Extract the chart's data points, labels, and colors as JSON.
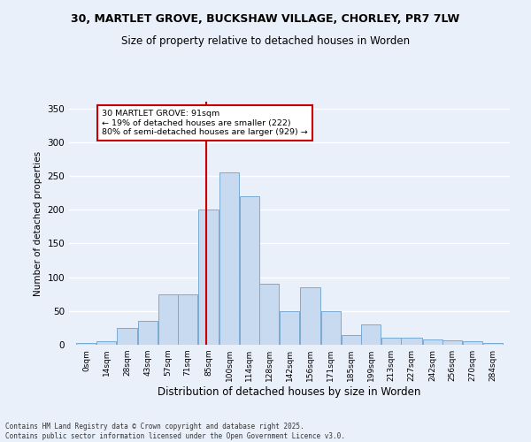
{
  "title_line1": "30, MARTLET GROVE, BUCKSHAW VILLAGE, CHORLEY, PR7 7LW",
  "title_line2": "Size of property relative to detached houses in Worden",
  "xlabel": "Distribution of detached houses by size in Worden",
  "ylabel": "Number of detached properties",
  "bar_labels": [
    "0sqm",
    "14sqm",
    "28sqm",
    "43sqm",
    "57sqm",
    "71sqm",
    "85sqm",
    "100sqm",
    "114sqm",
    "128sqm",
    "142sqm",
    "156sqm",
    "171sqm",
    "185sqm",
    "199sqm",
    "213sqm",
    "227sqm",
    "242sqm",
    "256sqm",
    "270sqm",
    "284sqm"
  ],
  "bar_values": [
    2,
    5,
    25,
    35,
    75,
    75,
    200,
    255,
    220,
    90,
    50,
    85,
    50,
    15,
    30,
    10,
    10,
    8,
    7,
    5,
    2
  ],
  "bar_edges": [
    0,
    14,
    28,
    43,
    57,
    71,
    85,
    100,
    114,
    128,
    142,
    156,
    171,
    185,
    199,
    213,
    227,
    242,
    256,
    270,
    284,
    298
  ],
  "bar_color": "#c8daf0",
  "bar_edge_color": "#7aaad4",
  "property_size": 91,
  "vline_color": "#cc0000",
  "annotation_text": "30 MARTLET GROVE: 91sqm\n← 19% of detached houses are smaller (222)\n80% of semi-detached houses are larger (929) →",
  "annotation_box_color": "#cc0000",
  "ylim": [
    0,
    360
  ],
  "yticks": [
    0,
    50,
    100,
    150,
    200,
    250,
    300,
    350
  ],
  "bg_color": "#eaf0fa",
  "grid_color": "#ffffff",
  "footer": "Contains HM Land Registry data © Crown copyright and database right 2025.\nContains public sector information licensed under the Open Government Licence v3.0."
}
